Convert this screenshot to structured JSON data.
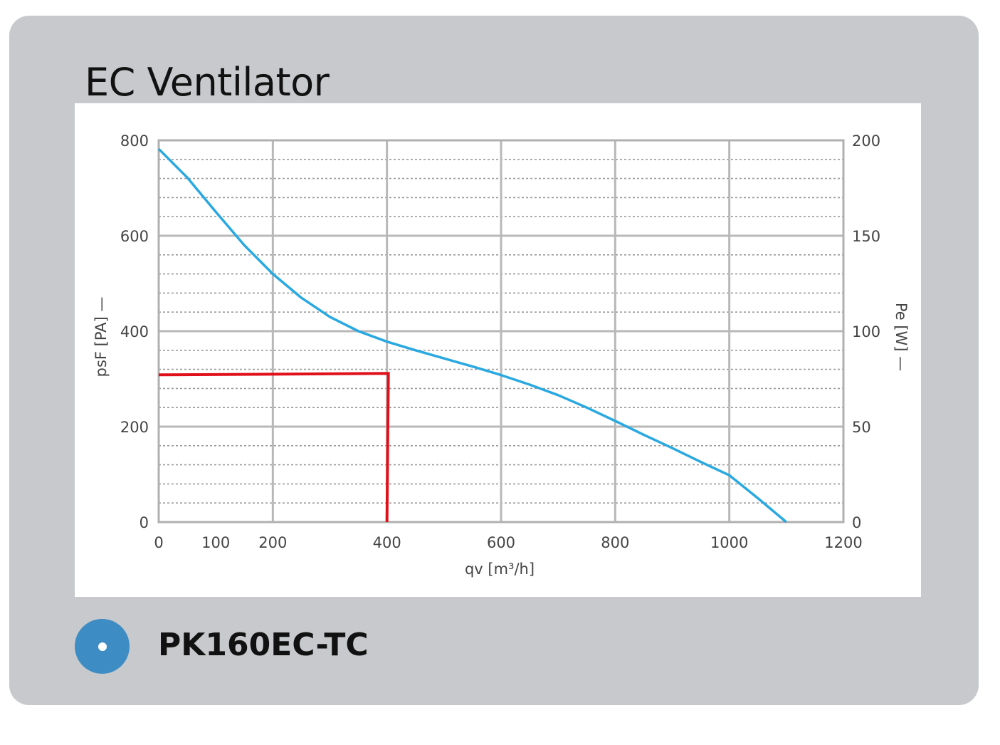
{
  "header": {
    "title": "EC Ventilator"
  },
  "product": {
    "model": "PK160EC-TC",
    "selected": true
  },
  "colors": {
    "card_bg": "#c8c9cc",
    "curve": "#2aa9e0",
    "marker": "#e0101a",
    "radio": "#3d8dc4"
  },
  "chart_data": {
    "type": "line",
    "xlabel": "qv [m³/h]",
    "ylabel": "psF [PA] —",
    "y2label": "Pe [W] —",
    "xlim": [
      0,
      1200
    ],
    "ylim": [
      0,
      800
    ],
    "y2lim": [
      0,
      200
    ],
    "xticks": [
      "0",
      "100",
      "200",
      "400",
      "600",
      "800",
      "1000",
      "1200"
    ],
    "xtick_values": [
      0,
      100,
      200,
      400,
      600,
      800,
      1000,
      1200
    ],
    "yticks": [
      "0",
      "200",
      "400",
      "600",
      "800"
    ],
    "ytick_values": [
      0,
      200,
      400,
      600,
      800
    ],
    "y2ticks": [
      "0",
      "50",
      "100",
      "150",
      "200"
    ],
    "y2tick_values": [
      0,
      50,
      100,
      150,
      200
    ],
    "grid": true,
    "series": [
      {
        "color": "#2aa9e0",
        "x": [
          0,
          50,
          100,
          150,
          200,
          250,
          300,
          350,
          400,
          450,
          500,
          550,
          600,
          650,
          700,
          750,
          800,
          850,
          900,
          950,
          1000,
          1050,
          1100
        ],
        "y": [
          782,
          722,
          650,
          580,
          520,
          470,
          430,
          400,
          378,
          360,
          343,
          326,
          308,
          288,
          266,
          240,
          212,
          183,
          155,
          126,
          98,
          50,
          0
        ]
      }
    ],
    "annotations": [
      {
        "type": "operating-point-marker",
        "color": "#e0101a",
        "x": 400,
        "y": 310
      }
    ]
  }
}
